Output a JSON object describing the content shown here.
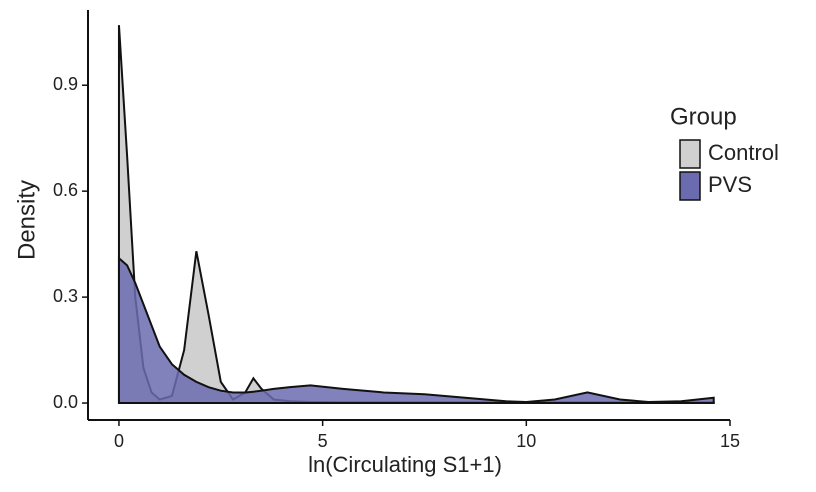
{
  "chart_data": {
    "type": "density",
    "x_label": "ln(Circulating S1+1)",
    "y_label": "Density",
    "legend_title": "Group",
    "legend_position": "right",
    "x": [
      0,
      0.2,
      0.4,
      0.6,
      0.8,
      1,
      1.3,
      1.6,
      1.9,
      2.2,
      2.5,
      2.8,
      3.1,
      3.3,
      3.5,
      3.8,
      4.2,
      4.7,
      5.5,
      6.5,
      7.5,
      8.5,
      9.5,
      10,
      10.7,
      11.5,
      12.3,
      13,
      13.8,
      14.6
    ],
    "series": [
      {
        "name": "Control",
        "color": "#d0d0d0",
        "values": [
          1.07,
          0.7,
          0.3,
          0.1,
          0.03,
          0.01,
          0.02,
          0.15,
          0.43,
          0.25,
          0.06,
          0.01,
          0.03,
          0.07,
          0.04,
          0.01,
          0.005,
          0.003,
          0.002,
          0.002,
          0.002,
          0.002,
          0.002,
          0.002,
          0.002,
          0.002,
          0.002,
          0.002,
          0.002,
          0.002
        ]
      },
      {
        "name": "PVS",
        "color": "#6b6bb0",
        "values": [
          0.41,
          0.39,
          0.34,
          0.28,
          0.22,
          0.16,
          0.11,
          0.08,
          0.06,
          0.045,
          0.035,
          0.03,
          0.03,
          0.032,
          0.035,
          0.04,
          0.045,
          0.05,
          0.04,
          0.03,
          0.025,
          0.015,
          0.005,
          0.003,
          0.01,
          0.03,
          0.01,
          0.003,
          0.005,
          0.015
        ]
      }
    ],
    "xlim": [
      -0.76,
      15
    ],
    "ylim": [
      -0.048,
      1.113
    ],
    "xticks": [
      0,
      5,
      10,
      15
    ],
    "yticks": [
      {
        "value": 0,
        "label": "0.0"
      },
      0.3,
      0.6,
      0.9
    ]
  }
}
